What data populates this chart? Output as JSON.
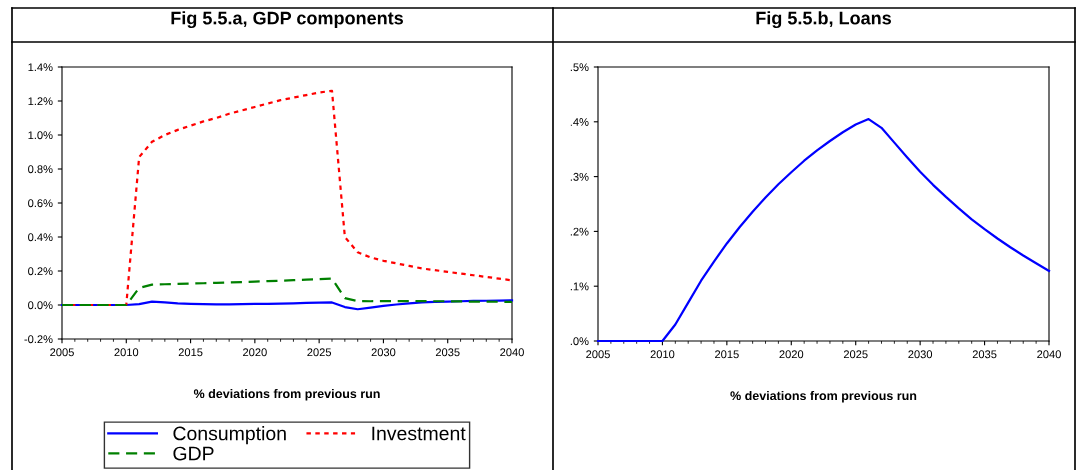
{
  "chart_data": [
    {
      "type": "line",
      "title": "Fig 5.5.a, GDP components",
      "xlabel": "% deviations from previous run",
      "x": [
        2005,
        2006,
        2007,
        2008,
        2009,
        2010,
        2011,
        2012,
        2013,
        2014,
        2015,
        2016,
        2017,
        2018,
        2019,
        2020,
        2021,
        2022,
        2023,
        2024,
        2025,
        2026,
        2027,
        2028,
        2029,
        2030,
        2031,
        2032,
        2033,
        2034,
        2035,
        2036,
        2037,
        2038,
        2039,
        2040
      ],
      "series": [
        {
          "name": "Consumption",
          "color": "#0000ff",
          "line_style": "solid",
          "values": [
            0,
            0,
            0,
            0,
            0,
            0,
            0.005,
            0.02,
            0.015,
            0.01,
            0.007,
            0.005,
            0.004,
            0.004,
            0.005,
            0.006,
            0.007,
            0.008,
            0.01,
            0.012,
            0.014,
            0.015,
            -0.012,
            -0.025,
            -0.015,
            -0.005,
            0.003,
            0.01,
            0.015,
            0.018,
            0.02,
            0.022,
            0.024,
            0.025,
            0.026,
            0.027
          ]
        },
        {
          "name": "Investment",
          "color": "#ff0000",
          "line_style": "dotted",
          "values": [
            0,
            0,
            0,
            0,
            0,
            0,
            0.87,
            0.96,
            1.0,
            1.03,
            1.055,
            1.08,
            1.1,
            1.125,
            1.145,
            1.165,
            1.185,
            1.205,
            1.22,
            1.235,
            1.25,
            1.26,
            0.4,
            0.31,
            0.28,
            0.26,
            0.245,
            0.23,
            0.215,
            0.205,
            0.195,
            0.185,
            0.175,
            0.165,
            0.155,
            0.145
          ]
        },
        {
          "name": "GDP",
          "color": "#008000",
          "line_style": "dashed",
          "values": [
            0,
            0,
            0,
            0,
            0,
            0,
            0.1,
            0.12,
            0.122,
            0.124,
            0.126,
            0.128,
            0.13,
            0.133,
            0.135,
            0.138,
            0.14,
            0.143,
            0.146,
            0.149,
            0.152,
            0.155,
            0.04,
            0.023,
            0.022,
            0.023,
            0.023,
            0.023,
            0.023,
            0.022,
            0.022,
            0.021,
            0.02,
            0.02,
            0.019,
            0.018
          ]
        }
      ],
      "xlim": [
        2005,
        2040
      ],
      "xticks": [
        2005,
        2010,
        2015,
        2020,
        2025,
        2030,
        2035,
        2040
      ],
      "ylim": [
        -0.2,
        1.4
      ],
      "yticks": [
        {
          "value": -0.2,
          "label": "-0.2%"
        },
        {
          "value": 0,
          "label": "0.0%"
        },
        {
          "value": 0.2,
          "label": "0.2%"
        },
        {
          "value": 0.4,
          "label": "0.4%"
        },
        {
          "value": 0.6,
          "label": "0.6%"
        },
        {
          "value": 0.8,
          "label": "0.8%"
        },
        {
          "value": 1.0,
          "label": "1.0%"
        },
        {
          "value": 1.2,
          "label": "1.2%"
        },
        {
          "value": 1.4,
          "label": "1.4%"
        }
      ],
      "grid": false,
      "legend": "bottom"
    },
    {
      "type": "line",
      "title": "Fig 5.5.b, Loans",
      "xlabel": "% deviations from previous run",
      "x": [
        2005,
        2006,
        2007,
        2008,
        2009,
        2010,
        2011,
        2012,
        2013,
        2014,
        2015,
        2016,
        2017,
        2018,
        2019,
        2020,
        2021,
        2022,
        2023,
        2024,
        2025,
        2026,
        2027,
        2028,
        2029,
        2030,
        2031,
        2032,
        2033,
        2034,
        2035,
        2036,
        2037,
        2038,
        2039,
        2040
      ],
      "series": [
        {
          "color": "#0000ff",
          "line_style": "solid",
          "values": [
            0,
            0,
            0,
            0,
            0,
            0,
            0.03,
            0.07,
            0.11,
            0.145,
            0.178,
            0.208,
            0.236,
            0.262,
            0.286,
            0.308,
            0.329,
            0.348,
            0.365,
            0.381,
            0.395,
            0.405,
            0.389,
            0.362,
            0.335,
            0.309,
            0.285,
            0.263,
            0.242,
            0.222,
            0.204,
            0.187,
            0.171,
            0.156,
            0.142,
            0.128
          ]
        }
      ],
      "xlim": [
        2005,
        2040
      ],
      "xticks": [
        2005,
        2010,
        2015,
        2020,
        2025,
        2030,
        2035,
        2040
      ],
      "ylim": [
        0,
        0.5
      ],
      "yticks": [
        {
          "value": 0,
          "label": ".0%"
        },
        {
          "value": 0.1,
          "label": ".1%"
        },
        {
          "value": 0.2,
          "label": ".2%"
        },
        {
          "value": 0.3,
          "label": ".3%"
        },
        {
          "value": 0.4,
          "label": ".4%"
        },
        {
          "value": 0.5,
          "label": ".5%"
        }
      ],
      "grid": false
    }
  ]
}
